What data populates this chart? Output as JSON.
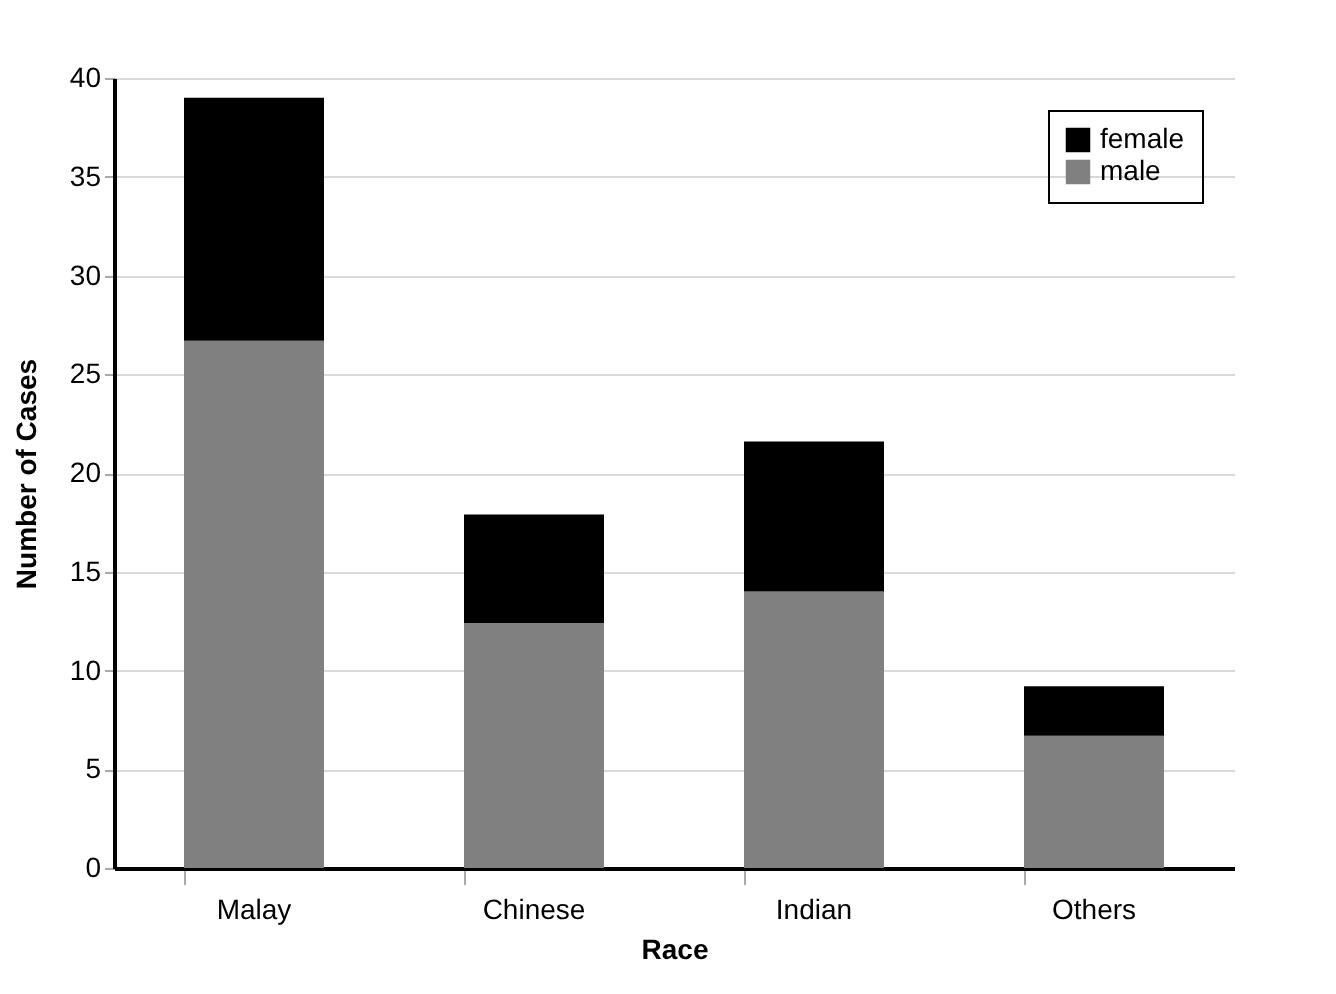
{
  "chart_data": {
    "type": "bar",
    "stacked": true,
    "xlabel": "Race",
    "ylabel": "Number of Cases",
    "categories": [
      "Malay",
      "Chinese",
      "Indian",
      "Others"
    ],
    "series": [
      {
        "name": "male",
        "color": "#808080",
        "values": [
          26.7,
          12.4,
          14.0,
          6.7
        ]
      },
      {
        "name": "female",
        "color": "#000000",
        "values": [
          12.3,
          5.5,
          7.6,
          2.5
        ]
      }
    ],
    "ylim": [
      0,
      40
    ],
    "yticks": [
      0,
      5,
      10,
      15,
      20,
      25,
      30,
      35,
      40
    ],
    "grid": "y",
    "legend": "top right"
  }
}
